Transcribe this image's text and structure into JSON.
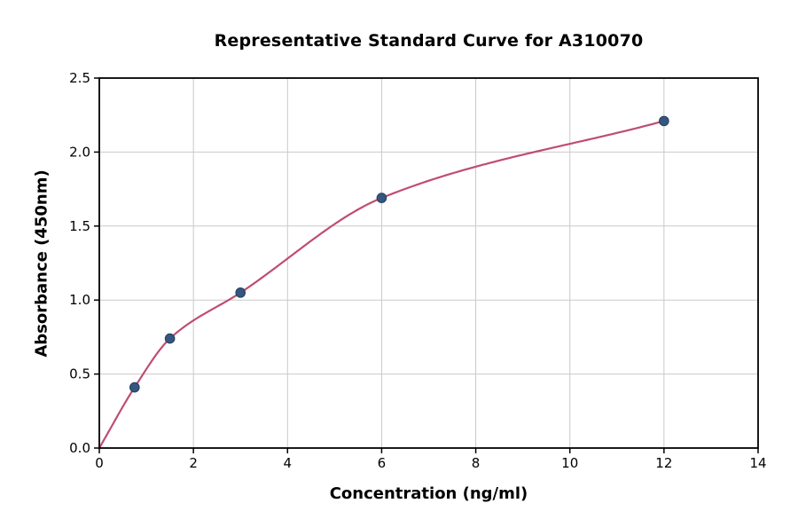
{
  "chart_data": {
    "type": "scatter",
    "title": "Representative Standard Curve for A310070",
    "xlabel": "Concentration (ng/ml)",
    "ylabel": "Absorbance (450nm)",
    "xlim": [
      0,
      14
    ],
    "ylim": [
      0,
      2.5
    ],
    "xticks": [
      0,
      2,
      4,
      6,
      8,
      10,
      12,
      14
    ],
    "xtick_labels": [
      "0",
      "2",
      "4",
      "6",
      "8",
      "10",
      "12",
      "14"
    ],
    "yticks": [
      0,
      0.5,
      1,
      1.5,
      2,
      2.5
    ],
    "ytick_labels": [
      "0.0",
      "0.5",
      "1.0",
      "1.5",
      "2.0",
      "2.5"
    ],
    "grid": true,
    "legend": "none",
    "grid_color": "#c9c9c9",
    "border_color": "#000000",
    "series": [
      {
        "name": "fit-curve",
        "type": "line",
        "smooth": true,
        "x": [
          0,
          0.75,
          1.5,
          3,
          6,
          12
        ],
        "y": [
          0,
          0.41,
          0.74,
          1.05,
          1.69,
          2.21
        ],
        "color": "#bf4d70"
      },
      {
        "name": "standards",
        "type": "scatter",
        "x": [
          0.75,
          1.5,
          3,
          6,
          12
        ],
        "y": [
          0.41,
          0.74,
          1.05,
          1.69,
          2.21
        ],
        "color": "#35567e",
        "edge_color": "#23405f"
      }
    ]
  }
}
